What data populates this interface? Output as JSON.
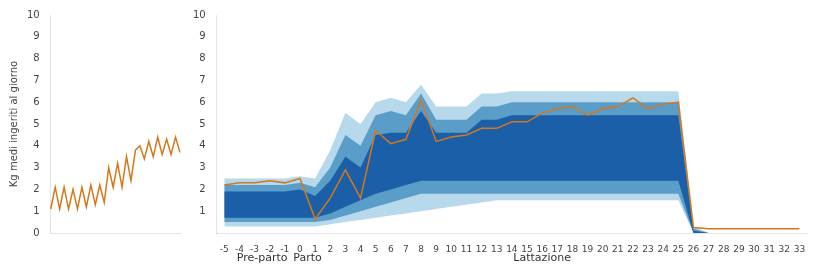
{
  "chart_data": [
    {
      "type": "line",
      "ylabel": "Kg medi ingeriti al giorno",
      "categories": [
        null,
        null,
        null,
        null,
        null,
        null,
        null,
        null,
        null,
        null,
        null,
        null,
        null,
        null,
        null,
        null,
        null,
        null,
        null,
        null,
        null,
        null,
        null,
        null,
        null,
        null,
        null,
        null,
        null,
        null
      ],
      "values": [
        1.1,
        2.1,
        1.1,
        2.1,
        1.1,
        2.0,
        1.1,
        2.1,
        1.2,
        2.2,
        1.3,
        2.2,
        1.4,
        3.0,
        2.1,
        3.2,
        2.1,
        3.5,
        2.4,
        3.8,
        4.0,
        3.4,
        4.2,
        3.5,
        4.4,
        3.6,
        4.3,
        3.6,
        4.4,
        3.7
      ],
      "color": "#d4781a",
      "ylim": [
        0,
        10
      ],
      "yticks": [
        0,
        1,
        2,
        3,
        4,
        5,
        6,
        7,
        8,
        9,
        10
      ],
      "grid": false,
      "tick_labels": "y",
      "legend": false
    },
    {
      "type": "line",
      "x": [
        -5,
        -4,
        -3,
        -2,
        -1,
        0,
        1,
        2,
        3,
        4,
        5,
        6,
        7,
        8,
        9,
        10,
        11,
        12,
        13,
        14,
        15,
        16,
        17,
        18,
        19,
        20,
        21,
        22,
        23,
        24,
        25,
        26,
        27,
        28,
        29,
        30,
        31,
        32,
        33
      ],
      "xlim": [
        -5.5,
        33.5
      ],
      "xticks": [
        -5,
        -4,
        -3,
        -2,
        -1,
        0,
        1,
        2,
        3,
        4,
        5,
        6,
        7,
        8,
        9,
        10,
        11,
        12,
        13,
        14,
        15,
        16,
        17,
        18,
        19,
        20,
        21,
        22,
        23,
        24,
        25,
        26,
        27,
        28,
        29,
        30,
        31,
        32,
        33
      ],
      "ylim": [
        0,
        10
      ],
      "yticks": [
        1,
        2,
        3,
        4,
        5,
        6,
        7,
        8,
        9,
        10
      ],
      "grid": false,
      "legend": false,
      "series": [
        {
          "type": "band",
          "color": "#b8d8eb",
          "low": [
            0.3,
            0.3,
            0.3,
            0.3,
            0.3,
            0.3,
            0.3,
            0.4,
            0.5,
            0.6,
            0.7,
            0.8,
            0.9,
            1.0,
            1.1,
            1.2,
            1.3,
            1.4,
            1.5,
            1.5,
            1.5,
            1.5,
            1.5,
            1.5,
            1.5,
            1.5,
            1.5,
            1.5,
            1.5,
            1.5,
            1.5,
            0.0,
            0.0,
            0.0,
            0.0,
            0.0,
            0.0,
            0.0,
            0.0
          ],
          "high": [
            2.5,
            2.5,
            2.5,
            2.5,
            2.5,
            2.6,
            2.5,
            3.8,
            5.5,
            5.0,
            6.0,
            6.2,
            6.0,
            6.8,
            5.8,
            5.8,
            5.8,
            6.4,
            6.4,
            6.5,
            6.5,
            6.5,
            6.5,
            6.5,
            6.5,
            6.5,
            6.5,
            6.5,
            6.5,
            6.5,
            6.5,
            0.3,
            0.0,
            0.0,
            0.0,
            0.0,
            0.0,
            0.0,
            0.0
          ]
        },
        {
          "type": "band",
          "color": "#5b9dc9",
          "low": [
            0.5,
            0.5,
            0.5,
            0.5,
            0.5,
            0.5,
            0.5,
            0.6,
            0.8,
            1.0,
            1.2,
            1.4,
            1.6,
            1.8,
            1.8,
            1.8,
            1.8,
            1.8,
            1.8,
            1.8,
            1.8,
            1.8,
            1.8,
            1.8,
            1.8,
            1.8,
            1.8,
            1.8,
            1.8,
            1.8,
            1.8,
            0.0,
            0.0,
            0.0,
            0.0,
            0.0,
            0.0,
            0.0,
            0.0
          ],
          "high": [
            2.2,
            2.2,
            2.2,
            2.2,
            2.2,
            2.3,
            2.1,
            3.0,
            4.5,
            4.0,
            5.4,
            5.6,
            5.4,
            6.4,
            5.2,
            5.2,
            5.2,
            5.8,
            5.8,
            6.0,
            6.0,
            6.0,
            6.0,
            6.0,
            6.0,
            6.0,
            6.0,
            6.0,
            6.0,
            6.0,
            6.0,
            0.2,
            0.0,
            0.0,
            0.0,
            0.0,
            0.0,
            0.0,
            0.0
          ]
        },
        {
          "type": "band",
          "color": "#1a5fa8",
          "low": [
            0.7,
            0.7,
            0.7,
            0.7,
            0.7,
            0.7,
            0.7,
            0.9,
            1.2,
            1.5,
            1.8,
            2.0,
            2.2,
            2.4,
            2.4,
            2.4,
            2.4,
            2.4,
            2.4,
            2.4,
            2.4,
            2.4,
            2.4,
            2.4,
            2.4,
            2.4,
            2.4,
            2.4,
            2.4,
            2.4,
            2.4,
            0.0,
            0.0,
            0.0,
            0.0,
            0.0,
            0.0,
            0.0,
            0.0
          ],
          "high": [
            1.9,
            1.9,
            1.9,
            1.9,
            1.9,
            2.0,
            1.7,
            2.4,
            3.5,
            3.0,
            4.5,
            4.6,
            4.6,
            5.6,
            4.6,
            4.6,
            4.6,
            5.2,
            5.2,
            5.4,
            5.4,
            5.4,
            5.4,
            5.4,
            5.4,
            5.4,
            5.4,
            5.4,
            5.4,
            5.4,
            5.4,
            0.1,
            0.0,
            0.0,
            0.0,
            0.0,
            0.0,
            0.0,
            0.0
          ]
        },
        {
          "type": "line",
          "color": "#d4781a",
          "values": [
            2.2,
            2.3,
            2.3,
            2.4,
            2.3,
            2.5,
            0.65,
            1.6,
            2.9,
            1.6,
            4.7,
            4.1,
            4.3,
            6.1,
            4.2,
            4.4,
            4.5,
            4.8,
            4.8,
            5.1,
            5.1,
            5.5,
            5.7,
            5.8,
            5.4,
            5.7,
            5.8,
            6.2,
            5.7,
            5.9,
            6.0,
            0.25,
            0.2,
            0.2,
            0.2,
            0.2,
            0.2,
            0.2,
            0.2
          ]
        }
      ],
      "annotations": [
        {
          "text": "Pre-parto",
          "x": -2.5
        },
        {
          "text": "Parto",
          "x": 0.5
        },
        {
          "text": "Lattazione",
          "x": 16
        }
      ]
    }
  ]
}
